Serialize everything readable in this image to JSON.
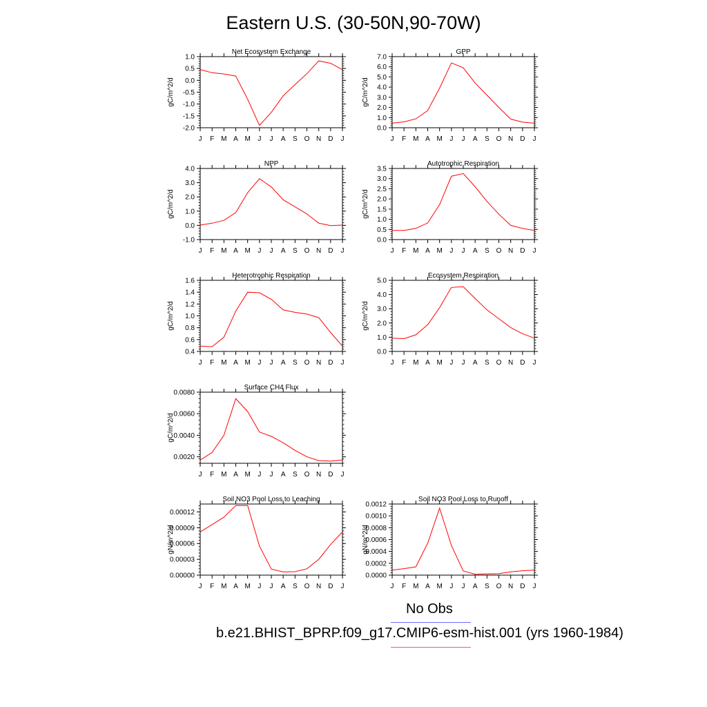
{
  "page": {
    "title": "Eastern U.S. (30-50N,90-70W)"
  },
  "legend": {
    "items": [
      {
        "label": "No Obs",
        "color": "#6a6aff"
      },
      {
        "label": "b.e21.BHIST_BPRP.f09_g17.CMIP6-esm-hist.001 (yrs 1960-1984)",
        "color": "#ff5a5a"
      }
    ]
  },
  "chart_data": [
    {
      "type": "line",
      "title": "Net Ecosystem Exchange",
      "ylabel": "gC/m^2/d",
      "categories": [
        "J",
        "F",
        "M",
        "A",
        "M",
        "J",
        "J",
        "A",
        "S",
        "O",
        "N",
        "D",
        "J"
      ],
      "ylim": [
        -2.0,
        1.0
      ],
      "yticks": [
        "1.0",
        "0.5",
        "0.0",
        "-0.5",
        "-1.0",
        "-1.5",
        "-2.0"
      ],
      "series": [
        {
          "color": "#ff0000",
          "values": [
            0.45,
            0.32,
            0.27,
            0.18,
            -0.8,
            -1.9,
            -1.35,
            -0.65,
            -0.18,
            0.28,
            0.82,
            0.72,
            0.45
          ]
        }
      ]
    },
    {
      "type": "line",
      "title": "GPP",
      "ylabel": "gC/m^2/d",
      "categories": [
        "J",
        "F",
        "M",
        "A",
        "M",
        "J",
        "J",
        "A",
        "S",
        "O",
        "N",
        "D",
        "J"
      ],
      "ylim": [
        0.0,
        7.0
      ],
      "yticks": [
        "7.0",
        "6.0",
        "5.0",
        "4.0",
        "3.0",
        "2.0",
        "1.0",
        "0.0"
      ],
      "series": [
        {
          "color": "#ff0000",
          "values": [
            0.45,
            0.58,
            0.88,
            1.7,
            3.9,
            6.38,
            5.9,
            4.4,
            3.2,
            2.0,
            0.85,
            0.55,
            0.45
          ]
        }
      ]
    },
    {
      "type": "line",
      "title": "NPP",
      "ylabel": "gC/m^2/d",
      "categories": [
        "J",
        "F",
        "M",
        "A",
        "M",
        "J",
        "J",
        "A",
        "S",
        "O",
        "N",
        "D",
        "J"
      ],
      "ylim": [
        -1.0,
        4.0
      ],
      "yticks": [
        "4.0",
        "3.0",
        "2.0",
        "1.0",
        "0.0",
        "-1.0"
      ],
      "series": [
        {
          "color": "#ff0000",
          "values": [
            0.02,
            0.15,
            0.35,
            0.9,
            2.3,
            3.28,
            2.7,
            1.8,
            1.3,
            0.8,
            0.15,
            -0.02,
            0.02
          ]
        }
      ]
    },
    {
      "type": "line",
      "title": "Autotrophic Respiration",
      "ylabel": "gC/m^2/d",
      "categories": [
        "J",
        "F",
        "M",
        "A",
        "M",
        "J",
        "J",
        "A",
        "S",
        "O",
        "N",
        "D",
        "J"
      ],
      "ylim": [
        0.0,
        3.5
      ],
      "yticks": [
        "3.5",
        "3.0",
        "2.5",
        "2.0",
        "1.5",
        "1.0",
        "0.5",
        "0.0"
      ],
      "series": [
        {
          "color": "#ff0000",
          "values": [
            0.45,
            0.45,
            0.55,
            0.82,
            1.72,
            3.12,
            3.25,
            2.6,
            1.88,
            1.25,
            0.7,
            0.55,
            0.45
          ]
        }
      ]
    },
    {
      "type": "line",
      "title": "Heterotrophic Respiration",
      "ylabel": "gC/m^2/d",
      "categories": [
        "J",
        "F",
        "M",
        "A",
        "M",
        "J",
        "J",
        "A",
        "S",
        "O",
        "N",
        "D",
        "J"
      ],
      "ylim": [
        0.4,
        1.6
      ],
      "yticks": [
        "1.6",
        "1.4",
        "1.2",
        "1.0",
        "0.8",
        "0.6",
        "0.4"
      ],
      "series": [
        {
          "color": "#ff0000",
          "values": [
            0.49,
            0.48,
            0.64,
            1.08,
            1.4,
            1.39,
            1.28,
            1.1,
            1.06,
            1.03,
            0.97,
            0.72,
            0.49
          ]
        }
      ]
    },
    {
      "type": "line",
      "title": "Ecosystem Respiration",
      "ylabel": "gC/m^2/d",
      "categories": [
        "J",
        "F",
        "M",
        "A",
        "M",
        "J",
        "J",
        "A",
        "S",
        "O",
        "N",
        "D",
        "J"
      ],
      "ylim": [
        0.0,
        5.0
      ],
      "yticks": [
        "5.0",
        "4.0",
        "3.0",
        "2.0",
        "1.0",
        "0.0"
      ],
      "series": [
        {
          "color": "#ff0000",
          "values": [
            0.93,
            0.9,
            1.17,
            1.88,
            3.08,
            4.5,
            4.55,
            3.72,
            2.92,
            2.3,
            1.68,
            1.25,
            0.93
          ]
        }
      ]
    },
    {
      "type": "line",
      "title": "Surface CH4 Flux",
      "ylabel": "gC/m^2/d",
      "categories": [
        "J",
        "F",
        "M",
        "A",
        "M",
        "J",
        "J",
        "A",
        "S",
        "O",
        "N",
        "D",
        "J"
      ],
      "ylim": [
        0.0014,
        0.008
      ],
      "yticks": [
        "0.0080",
        "0.0060",
        "0.0040",
        "0.0020"
      ],
      "series": [
        {
          "color": "#ff0000",
          "values": [
            0.0017,
            0.0024,
            0.004,
            0.0074,
            0.0062,
            0.0043,
            0.0039,
            0.0033,
            0.0026,
            0.002,
            0.00165,
            0.0016,
            0.0017
          ]
        }
      ]
    },
    null,
    {
      "type": "line",
      "title": "Soil NO3 Pool Loss to Leaching",
      "ylabel": "gN/m^2/d",
      "categories": [
        "J",
        "F",
        "M",
        "A",
        "M",
        "J",
        "J",
        "A",
        "S",
        "O",
        "N",
        "D",
        "J"
      ],
      "ylim": [
        0.0,
        0.000135
      ],
      "yticks": [
        "0.00012",
        "0.00009",
        "0.00006",
        "0.00003",
        "0.00000"
      ],
      "series": [
        {
          "color": "#ff0000",
          "values": [
            8.2e-05,
            9.6e-05,
            0.00011,
            0.000132,
            0.000132,
            5.5e-05,
            1.15e-05,
            6e-06,
            6.5e-06,
            1.2e-05,
            3e-05,
            5.8e-05,
            8.2e-05
          ]
        }
      ]
    },
    {
      "type": "line",
      "title": "Soil NO3 Pool Loss to Runoff",
      "ylabel": "gN/m^2/d",
      "categories": [
        "J",
        "F",
        "M",
        "A",
        "M",
        "J",
        "J",
        "A",
        "S",
        "O",
        "N",
        "D",
        "J"
      ],
      "ylim": [
        0.0,
        0.0012
      ],
      "yticks": [
        "0.0012",
        "0.0010",
        "0.0008",
        "0.0006",
        "0.0004",
        "0.0002",
        "0.0000"
      ],
      "series": [
        {
          "color": "#ff0000",
          "values": [
            8.5e-05,
            0.00011,
            0.00014,
            0.00054,
            0.00113,
            0.0005,
            7e-05,
            1.5e-05,
            2e-05,
            2.5e-05,
            5.5e-05,
            7.5e-05,
            8.5e-05
          ]
        }
      ]
    }
  ]
}
